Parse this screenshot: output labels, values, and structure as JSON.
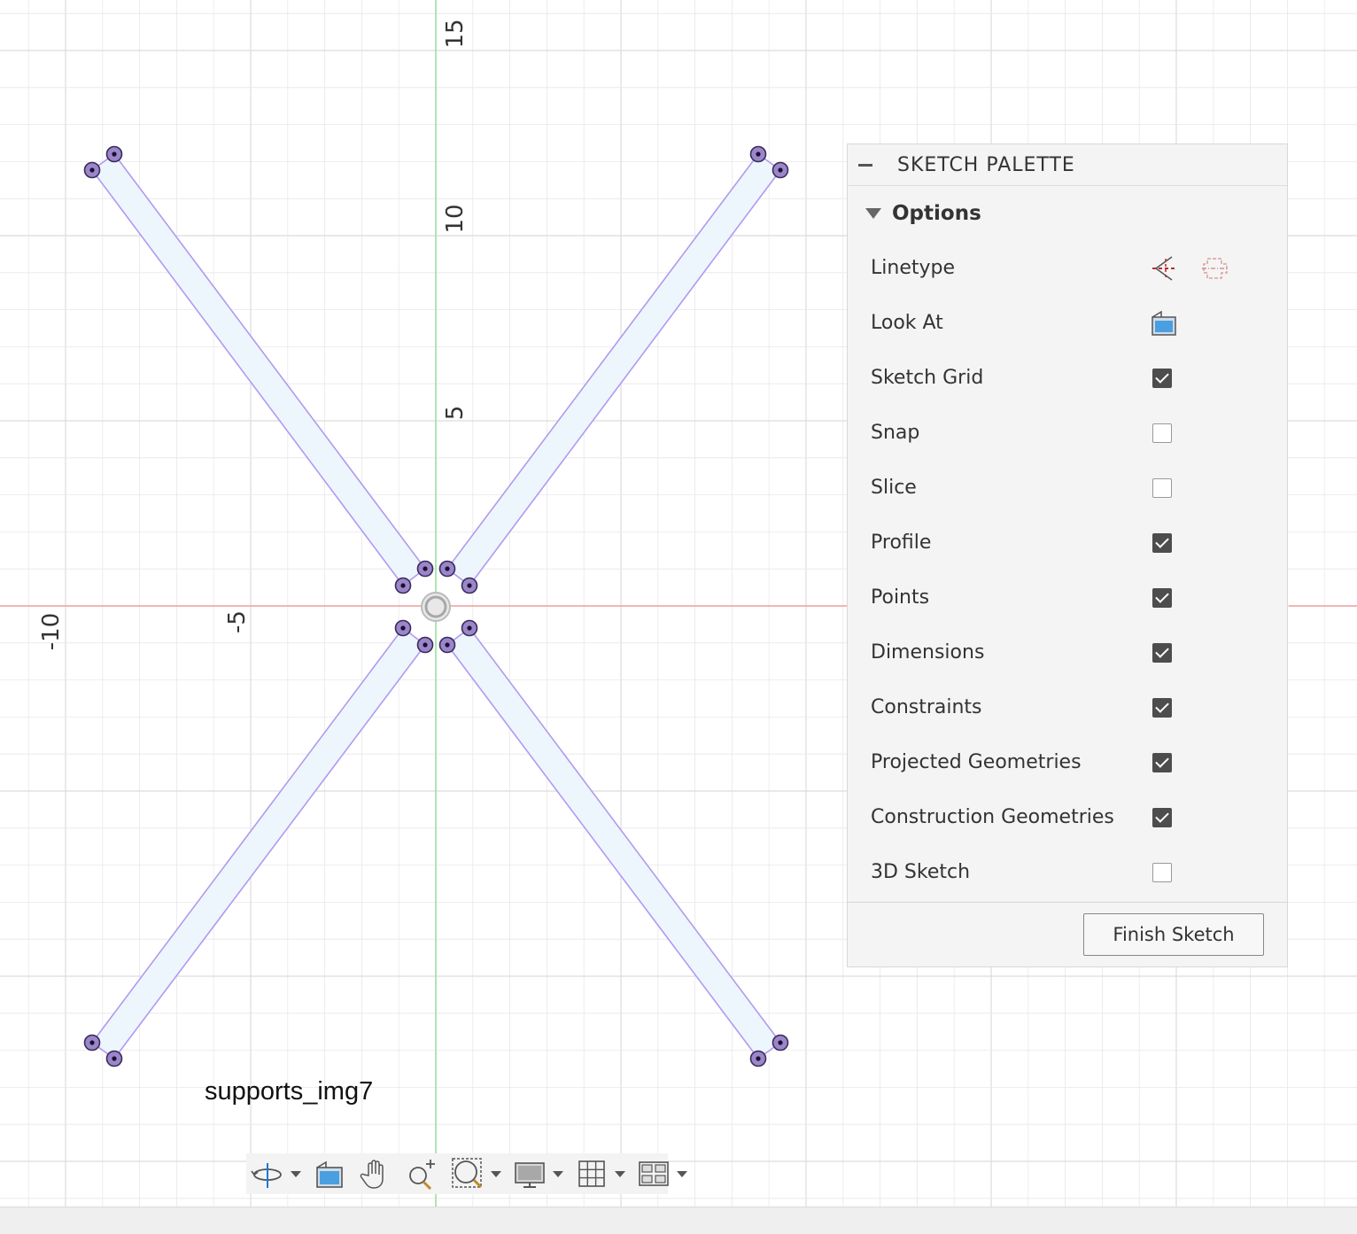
{
  "canvas": {
    "axis_labels": {
      "y_15": "15",
      "y_10": "10",
      "y_5": "5",
      "x_neg10": "-10",
      "x_neg5": "-5"
    },
    "colors": {
      "grid": "#e8e8e8",
      "x_axis": "#f0a0a0",
      "y_axis": "#98e098",
      "sketch_line": "#b09af0",
      "profile_fill": "#eef6fd",
      "point": "#5a3d8c"
    }
  },
  "palette": {
    "title": "SKETCH PALETTE",
    "section": "Options",
    "rows": [
      {
        "label": "Linetype",
        "type": "icons",
        "icons": [
          "construction-linetype-icon",
          "centerline-linetype-icon"
        ]
      },
      {
        "label": "Look At",
        "type": "icon",
        "icons": [
          "look-at-icon"
        ]
      },
      {
        "label": "Sketch Grid",
        "type": "checkbox",
        "checked": true
      },
      {
        "label": "Snap",
        "type": "checkbox",
        "checked": false
      },
      {
        "label": "Slice",
        "type": "checkbox",
        "checked": false
      },
      {
        "label": "Profile",
        "type": "checkbox",
        "checked": true
      },
      {
        "label": "Points",
        "type": "checkbox",
        "checked": true
      },
      {
        "label": "Dimensions",
        "type": "checkbox",
        "checked": true
      },
      {
        "label": "Constraints",
        "type": "checkbox",
        "checked": true
      },
      {
        "label": "Projected Geometries",
        "type": "checkbox",
        "checked": true
      },
      {
        "label": "Construction Geometries",
        "type": "checkbox",
        "checked": true
      },
      {
        "label": "3D Sketch",
        "type": "checkbox",
        "checked": false
      }
    ],
    "finish_label": "Finish Sketch"
  },
  "file_label": "supports_img7",
  "nav_bar": {
    "tools": [
      "orbit-icon",
      "look-at-icon",
      "pan-icon",
      "zoom-icon",
      "zoom-window-icon",
      "display-settings-icon",
      "grid-settings-icon",
      "viewports-icon"
    ]
  }
}
